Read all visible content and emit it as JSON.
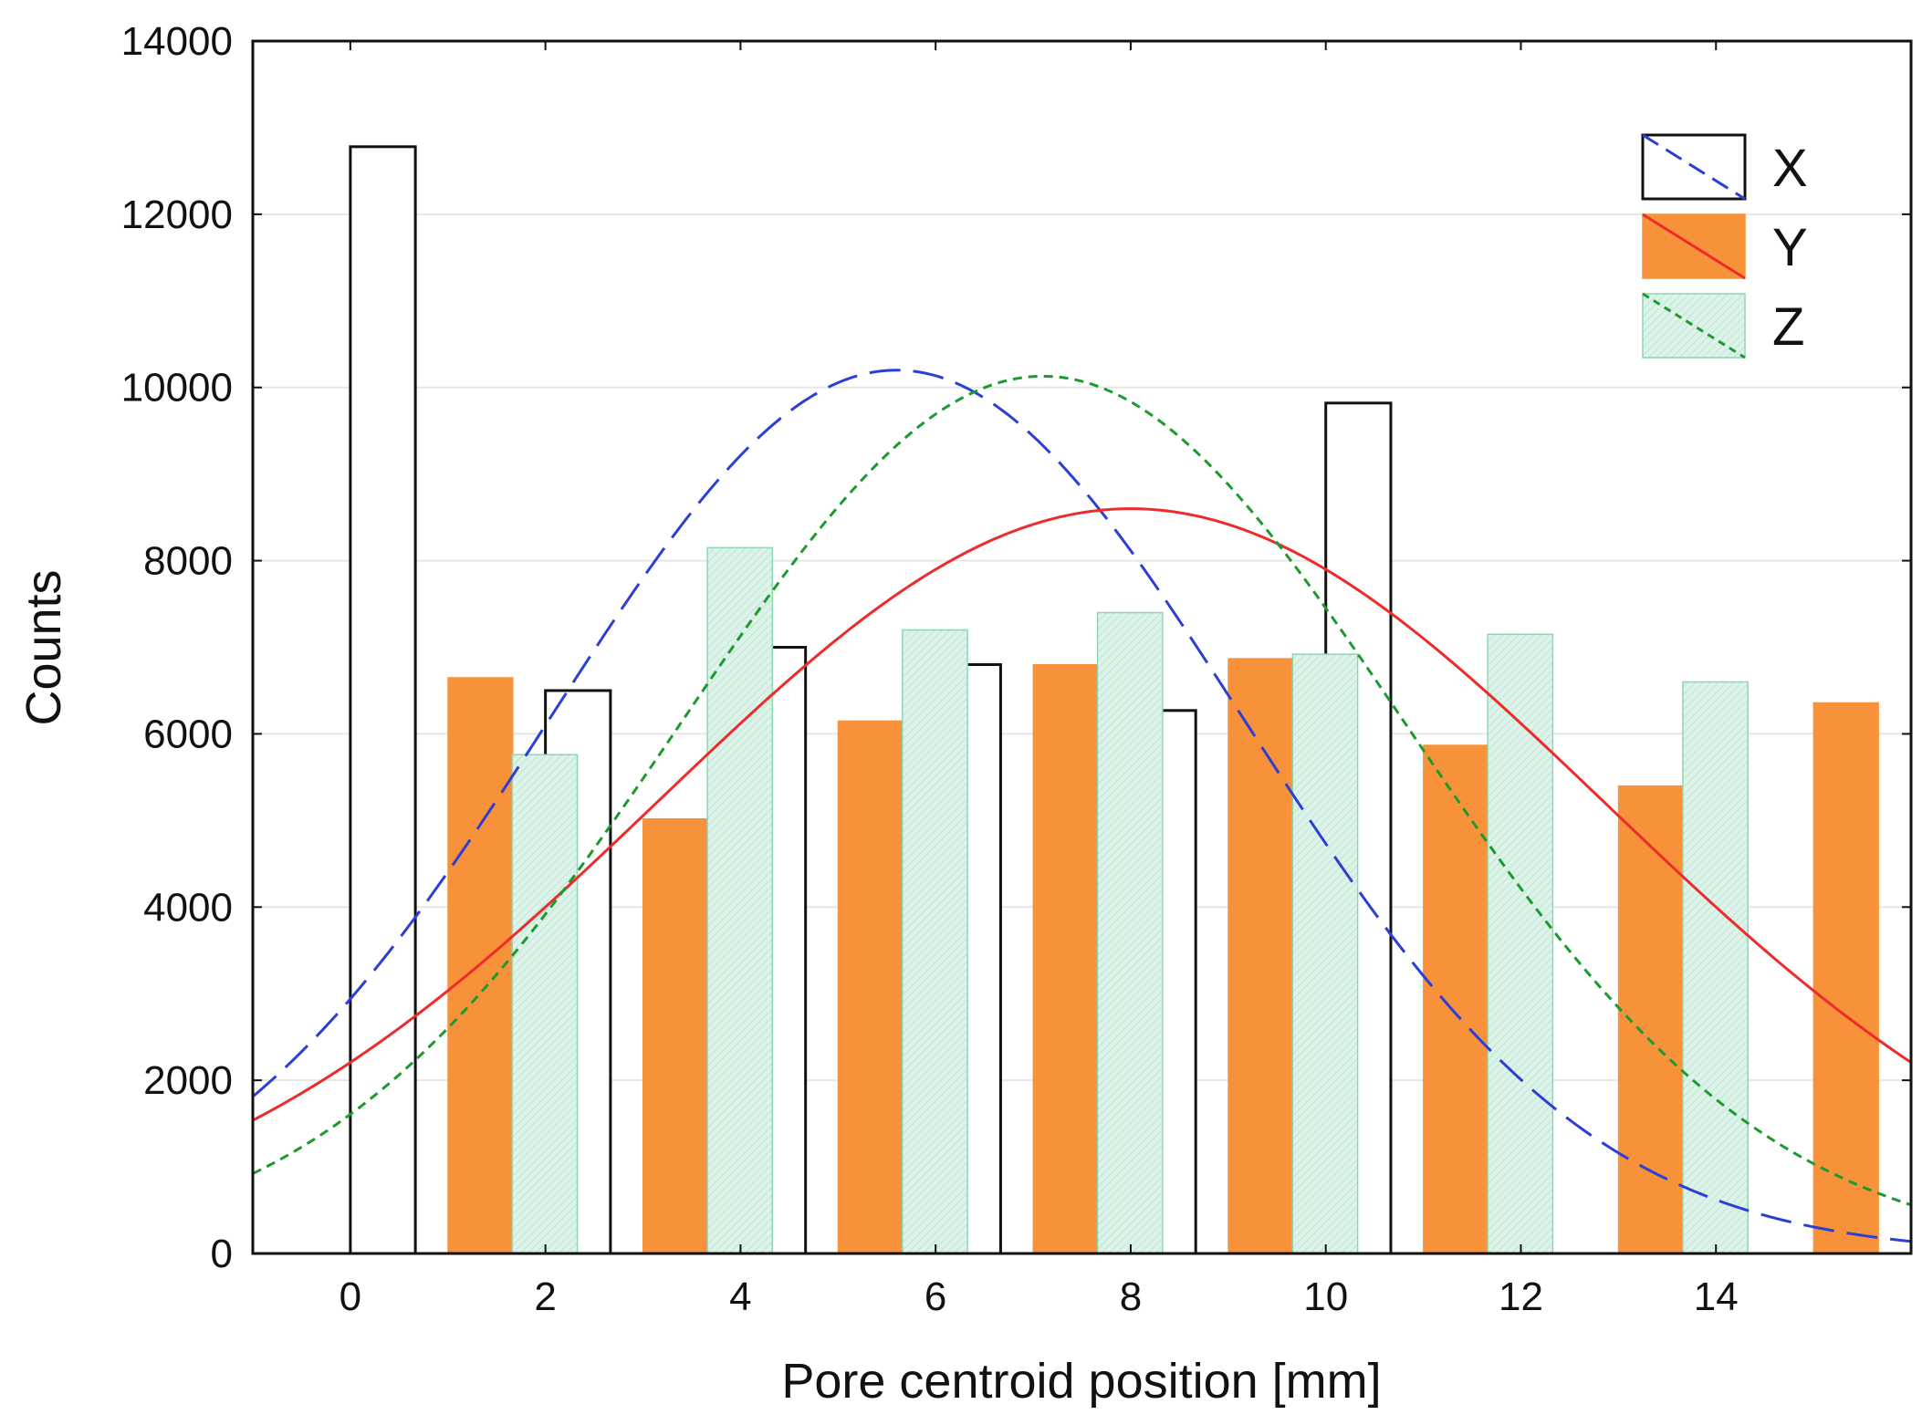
{
  "chart_data": {
    "type": "bar",
    "xlabel": "Pore centroid position [mm]",
    "ylabel": "Counts",
    "xlim": [
      -1,
      16
    ],
    "ylim": [
      0,
      14000
    ],
    "x_ticks": [
      0,
      2,
      4,
      6,
      8,
      10,
      12,
      14
    ],
    "y_ticks": [
      0,
      2000,
      4000,
      6000,
      8000,
      10000,
      12000,
      14000
    ],
    "bin_width": 2,
    "grid": true,
    "legend_position": "top-right",
    "series": [
      {
        "name": "X",
        "bars": [
          {
            "x": 0,
            "value": 12780
          },
          {
            "x": 2,
            "value": 6500
          },
          {
            "x": 4,
            "value": 7000
          },
          {
            "x": 6,
            "value": 6800
          },
          {
            "x": 8,
            "value": 6270
          },
          {
            "x": 10,
            "value": 9820
          }
        ],
        "fill": "#ffffff",
        "stroke": "#111111",
        "curve": {
          "peak_x": 5.6,
          "peak_y": 10200,
          "sigma": 3.55,
          "color": "#2b3fd6",
          "style": "dashed"
        }
      },
      {
        "name": "Y",
        "bars": [
          {
            "x": 1,
            "value": 6650
          },
          {
            "x": 3,
            "value": 5020
          },
          {
            "x": 5,
            "value": 6150
          },
          {
            "x": 7,
            "value": 6800
          },
          {
            "x": 9,
            "value": 6870
          },
          {
            "x": 11,
            "value": 5870
          },
          {
            "x": 13,
            "value": 5400
          },
          {
            "x": 15,
            "value": 6360
          }
        ],
        "fill": "#f7923a",
        "stroke": "#f7923a",
        "curve": {
          "peak_x": 8.0,
          "peak_y": 8600,
          "sigma": 4.85,
          "color": "#ee2b2b",
          "style": "solid"
        }
      },
      {
        "name": "Z",
        "bars": [
          {
            "x": 1.66,
            "value": 5760
          },
          {
            "x": 3.66,
            "value": 8150
          },
          {
            "x": 5.66,
            "value": 7200
          },
          {
            "x": 7.66,
            "value": 7400
          },
          {
            "x": 9.66,
            "value": 6920
          },
          {
            "x": 11.66,
            "value": 7150
          },
          {
            "x": 13.66,
            "value": 6600
          }
        ],
        "fill": "#d8f1e6",
        "stroke": "#8ed6b4",
        "curve": {
          "peak_x": 7.1,
          "peak_y": 10130,
          "sigma": 3.7,
          "color": "#1c9a2e",
          "style": "dotted"
        }
      }
    ]
  }
}
